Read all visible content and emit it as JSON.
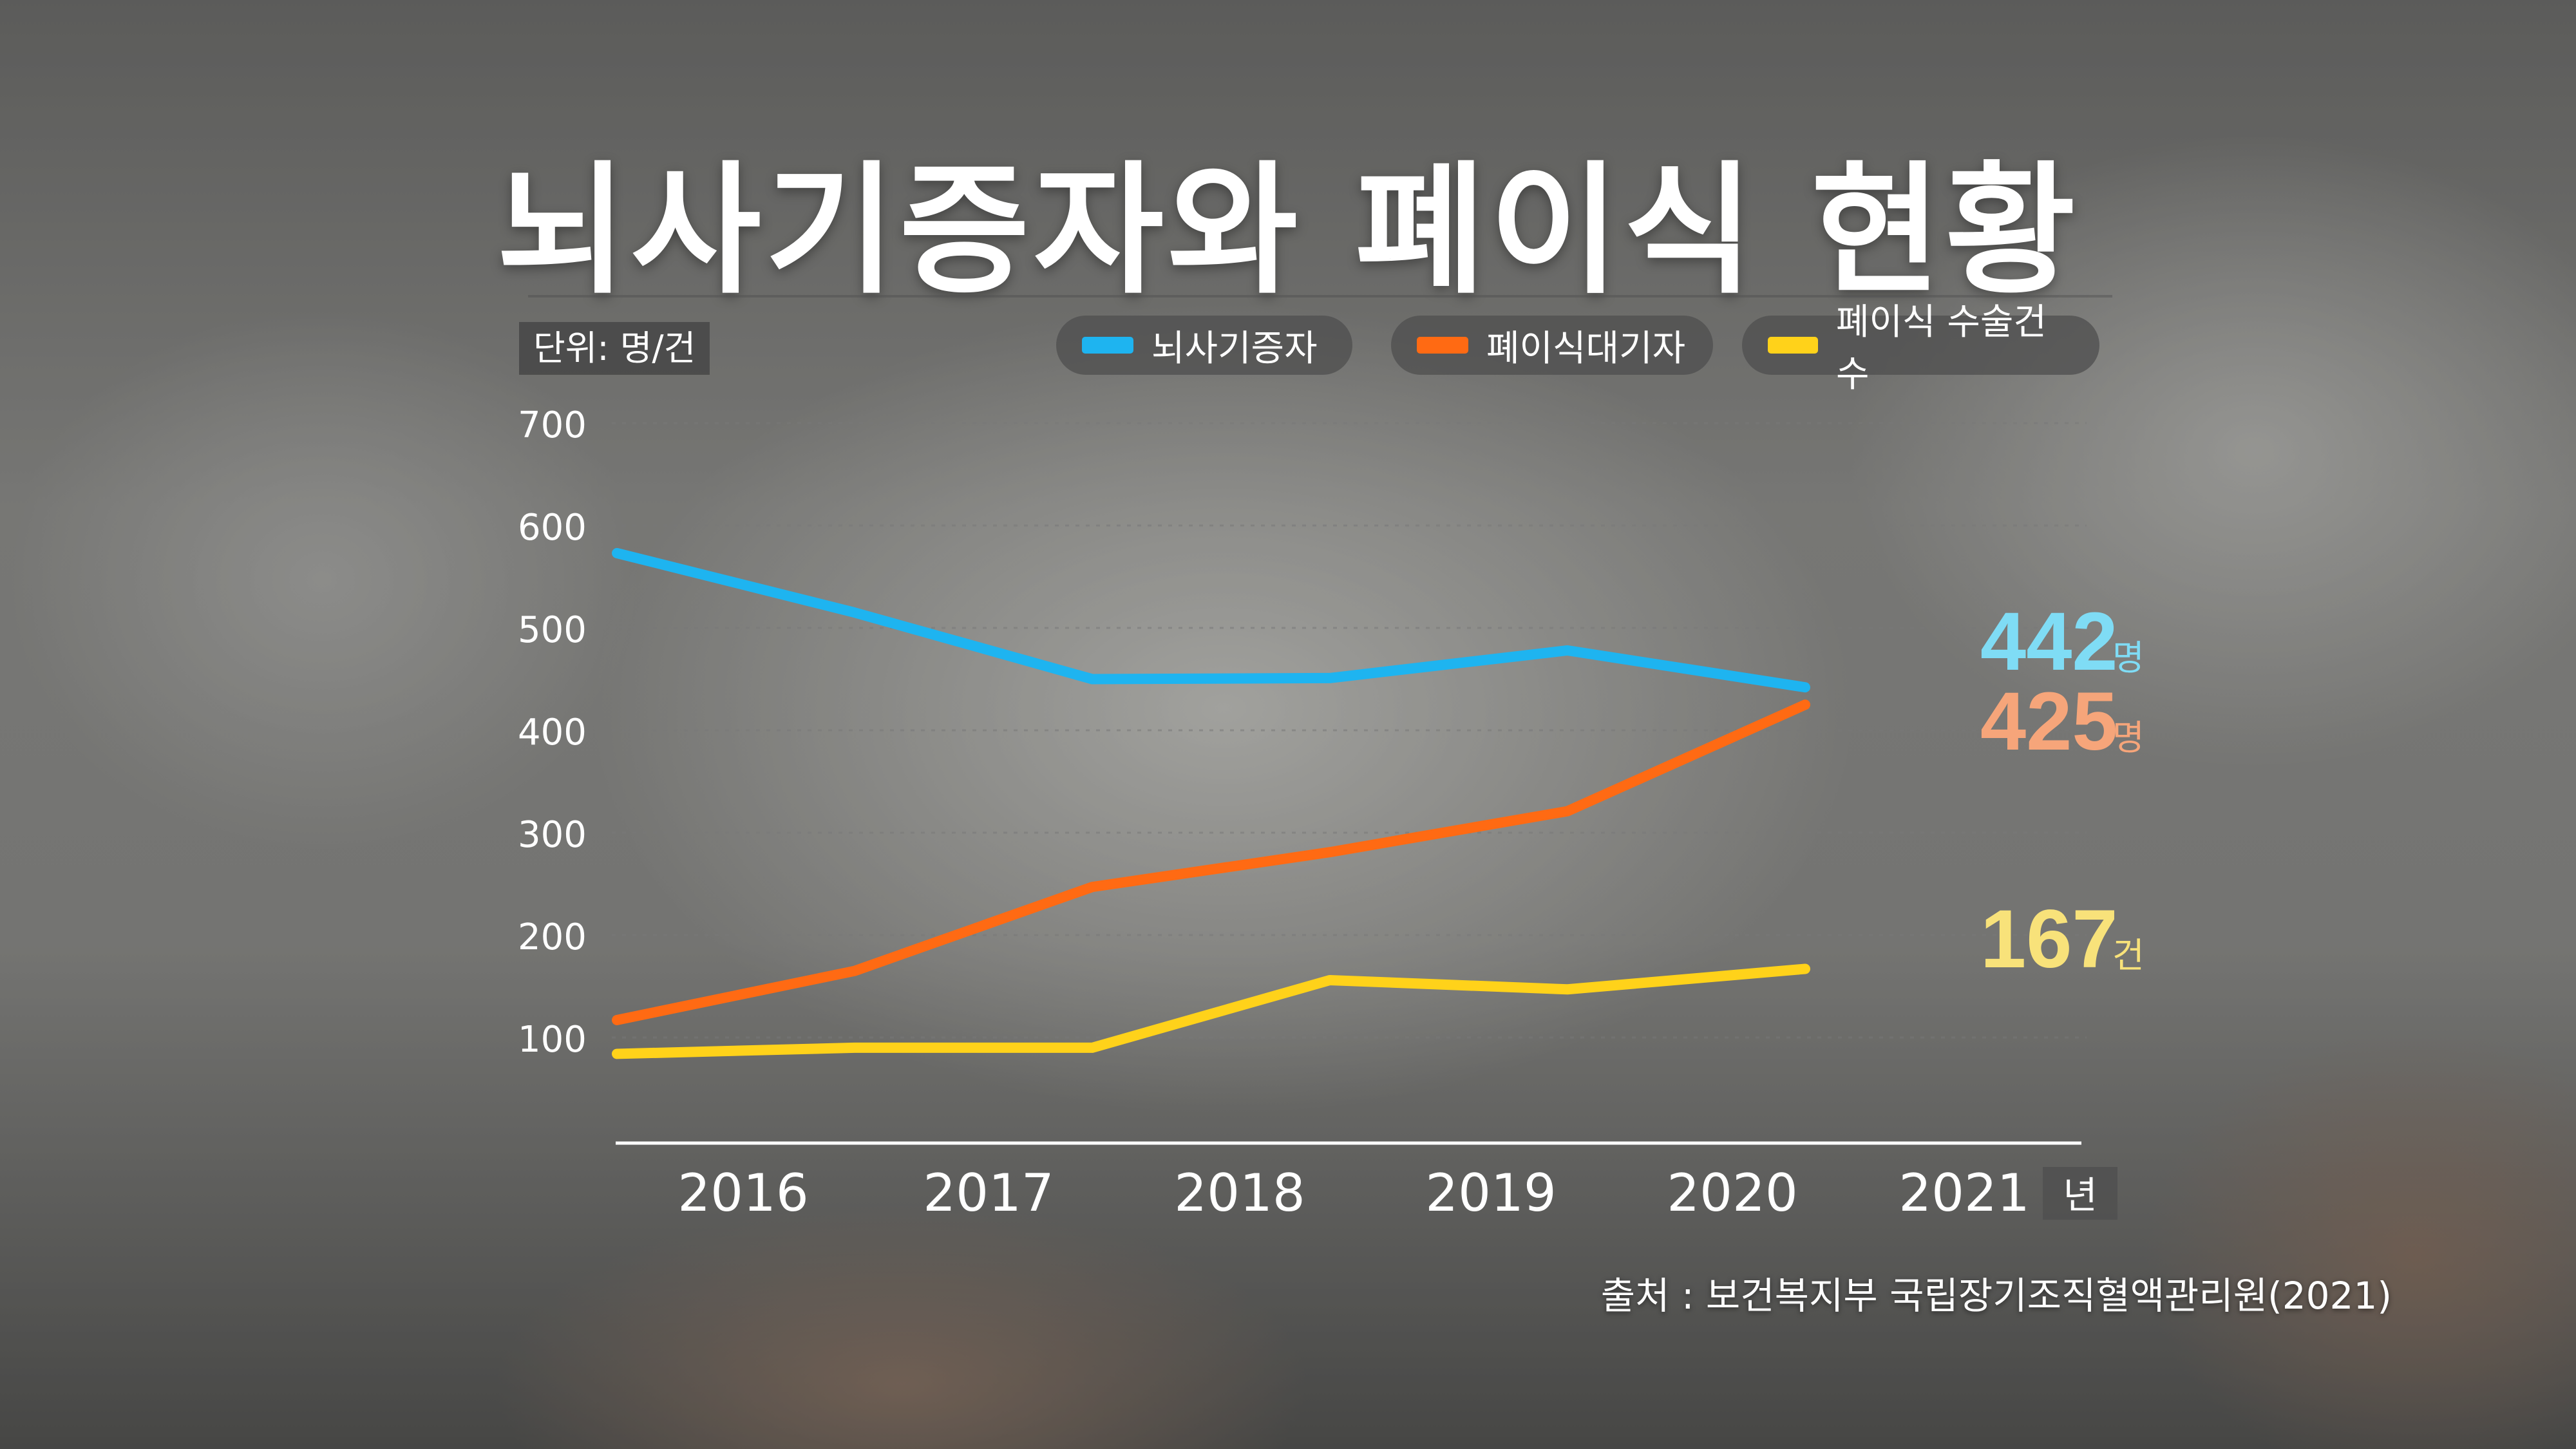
{
  "title": "뇌사기증자와 폐이식 현황",
  "unit_label": "단위: 명/건",
  "source": "출처 : 보건복지부 국립장기조직혈액관리원(2021)",
  "chart_data": {
    "type": "line",
    "title": "뇌사기증자와 폐이식 현황",
    "xlabel": "년",
    "ylabel": "",
    "x": [
      "2016",
      "2017",
      "2018",
      "2019",
      "2020",
      "2021"
    ],
    "ylim": [
      0,
      700
    ],
    "yticks": [
      100,
      200,
      300,
      400,
      500,
      600,
      700
    ],
    "grid": true,
    "legend_position": "top",
    "series": [
      {
        "name": "뇌사기증자",
        "color": "#1eb4f0",
        "values": [
          573,
          515,
          450,
          451,
          478,
          442
        ],
        "end_label": "442",
        "end_unit": "명",
        "label_color": "#7fdcf5"
      },
      {
        "name": "폐이식대기자",
        "color": "#ff6a13",
        "values": [
          117,
          165,
          247,
          281,
          321,
          425
        ],
        "end_label": "425",
        "end_unit": "명",
        "label_color": "#f6a57a"
      },
      {
        "name": "폐이식 수술건수",
        "color": "#ffd21a",
        "values": [
          84,
          90,
          90,
          156,
          147,
          167
        ],
        "end_label": "167",
        "end_unit": "건",
        "label_color": "#f8e27a"
      }
    ]
  }
}
